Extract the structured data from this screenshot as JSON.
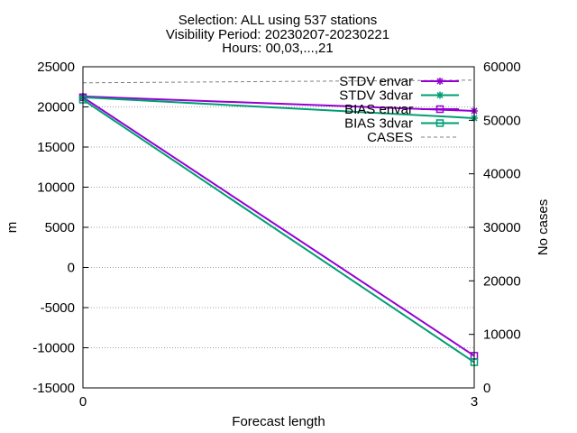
{
  "chart_data": {
    "type": "line",
    "title_lines": [
      "Selection: ALL using   537 stations",
      "Visibility   Period: 20230207-20230221",
      "Hours: 00,03,...,21"
    ],
    "xlabel": "Forecast length",
    "ylabel": "m",
    "y2label": "No cases",
    "x": [
      0,
      3
    ],
    "xlim": [
      0,
      3
    ],
    "ylim": [
      -15000,
      25000
    ],
    "y2lim": [
      0,
      60000
    ],
    "x_ticks": [
      0,
      3
    ],
    "y_ticks": [
      -15000,
      -10000,
      -5000,
      0,
      5000,
      10000,
      15000,
      20000,
      25000
    ],
    "y2_ticks": [
      0,
      10000,
      20000,
      30000,
      40000,
      50000,
      60000
    ],
    "grid": true,
    "legend_position": "top-right",
    "series": [
      {
        "name": "STDV envar",
        "values": [
          21300,
          19500
        ],
        "color": "#9400d3",
        "marker": "star",
        "axis": "y"
      },
      {
        "name": "STDV 3dvar",
        "values": [
          21200,
          18600
        ],
        "color": "#009e73",
        "marker": "star",
        "axis": "y"
      },
      {
        "name": "BIAS envar",
        "values": [
          21200,
          -11000
        ],
        "color": "#9400d3",
        "marker": "square",
        "axis": "y"
      },
      {
        "name": "BIAS 3dvar",
        "values": [
          20900,
          -11800
        ],
        "color": "#009e73",
        "marker": "square",
        "axis": "y"
      },
      {
        "name": "CASES",
        "values": [
          57000,
          57500
        ],
        "color": "#808080",
        "marker": "none",
        "dashed": true,
        "axis": "y2"
      }
    ]
  }
}
